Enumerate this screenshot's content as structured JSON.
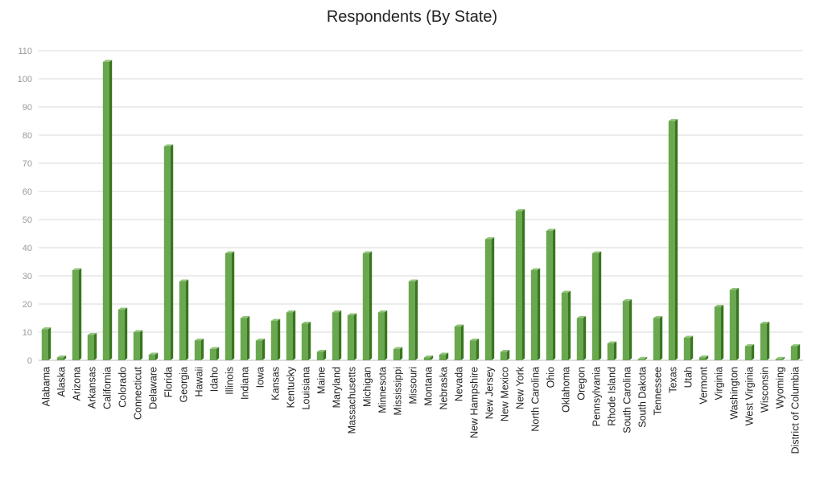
{
  "chart_data": {
    "type": "bar",
    "title": "Respondents (By State)",
    "xlabel": "",
    "ylabel": "",
    "ylim": [
      0,
      110
    ],
    "yticks": [
      0,
      10,
      20,
      30,
      40,
      50,
      60,
      70,
      80,
      90,
      100,
      110
    ],
    "grid": true,
    "legend": "none",
    "bar_color": "#6aa84f",
    "bar_side_color": "#38761d",
    "categories": [
      "Alabama",
      "Alaska",
      "Arizona",
      "Arkansas",
      "California",
      "Colorado",
      "Connecticut",
      "Delaware",
      "Florida",
      "Georgia",
      "Hawaii",
      "Idaho",
      "Illinois",
      "Indiana",
      "Iowa",
      "Kansas",
      "Kentucky",
      "Louisiana",
      "Maine",
      "Maryland",
      "Massachusetts",
      "Michigan",
      "Minnesota",
      "Mississippi",
      "Missouri",
      "Montana",
      "Nebraska",
      "Nevada",
      "New Hampshire",
      "New Jersey",
      "New Mexico",
      "New York",
      "North Carolina",
      "Ohio",
      "Oklahoma",
      "Oregon",
      "Pennsylvania",
      "Rhode Island",
      "South Carolina",
      "South Dakota",
      "Tennessee",
      "Texas",
      "Utah",
      "Vermont",
      "Virginia",
      "Washington",
      "West Virginia",
      "Wisconsin",
      "Wyoming",
      "District of Columbia"
    ],
    "values": [
      11,
      1,
      32,
      9,
      106,
      18,
      10,
      2,
      76,
      28,
      7,
      4,
      38,
      15,
      7,
      14,
      17,
      13,
      3,
      17,
      16,
      38,
      17,
      4,
      28,
      1,
      2,
      12,
      7,
      43,
      3,
      53,
      32,
      46,
      24,
      15,
      38,
      6,
      21,
      0.5,
      15,
      85,
      8,
      1,
      19,
      25,
      5,
      13,
      0.5,
      5
    ]
  }
}
